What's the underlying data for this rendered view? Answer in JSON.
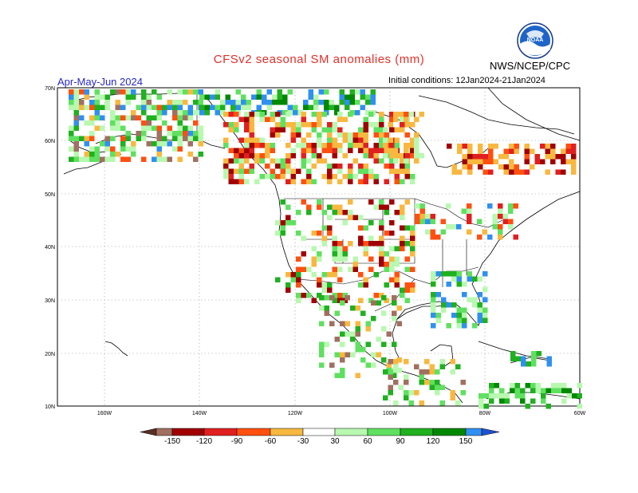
{
  "title": "CFSv2 seasonal SM anomalies (mm)",
  "season": "Apr-May-Jun 2024",
  "org": "NWS/NCEP/CPC",
  "init": "Initial conditions: 12Jan2024-21Jan2024",
  "logo_text": "NOAA",
  "lat_labels": [
    "70N",
    "60N",
    "50N",
    "40N",
    "30N",
    "20N",
    "10N"
  ],
  "lon_labels": [
    "160W",
    "140W",
    "120W",
    "100W",
    "80W",
    "60W"
  ],
  "colorbar": {
    "labels": [
      "-150",
      "-120",
      "-90",
      "-60",
      "-30",
      "30",
      "60",
      "90",
      "120",
      "150"
    ],
    "colors": [
      "#5a3020",
      "#a07060",
      "#a00000",
      "#e02020",
      "#ff5010",
      "#f8b840",
      "#ffffff",
      "#b8f8b0",
      "#60e060",
      "#20b020",
      "#008800",
      "#3090f0",
      "#2050d0"
    ]
  },
  "colors": {
    "ocean": "#ffffff",
    "coast": "#000000",
    "grid": "#808080"
  }
}
